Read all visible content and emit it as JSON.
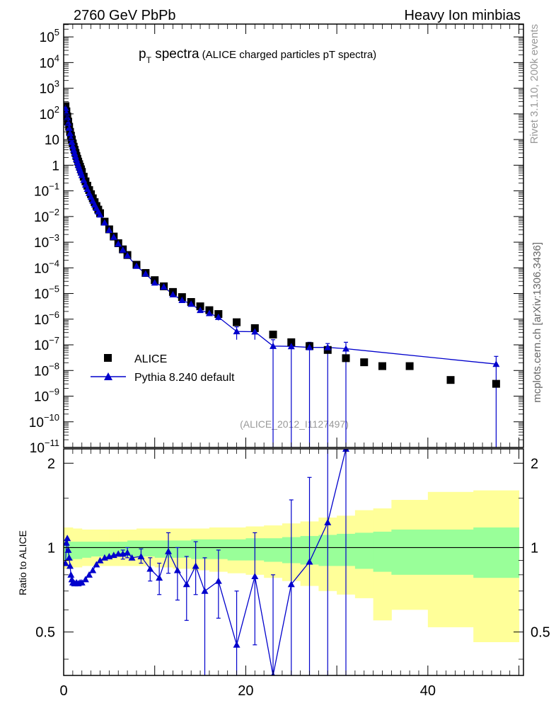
{
  "header": {
    "left_title": "2760 GeV PbPb",
    "right_title": "Heavy Ion minbias"
  },
  "main_title": {
    "symbol": "p",
    "subscript": "T",
    "word": " spectra",
    "detail": " (ALICE charged particles pT spectra)"
  },
  "side_labels": {
    "rivet": "Rivet 3.1.10,  200k events",
    "mcplots": "mcplots.cern.ch [arXiv:1306.3436]"
  },
  "analysis_tag": "(ALICE_2012_I1127497)",
  "colors": {
    "data": "#000000",
    "mc": "#0000cc",
    "band_outer": "#ffff99",
    "band_inner": "#99ff99"
  },
  "chart_data": [
    {
      "type": "scatter",
      "panel": "main",
      "xlim": [
        0,
        50.5
      ],
      "ylim_log10": [
        -11,
        5.5
      ],
      "y_scale": "log",
      "yticks": [
        {
          "v": 5,
          "label": "10",
          "exp": "5"
        },
        {
          "v": 4,
          "label": "10",
          "exp": "4"
        },
        {
          "v": 3,
          "label": "10",
          "exp": "3"
        },
        {
          "v": 2,
          "label": "10",
          "exp": "2"
        },
        {
          "v": 1,
          "label": "10",
          "exp": ""
        },
        {
          "v": 0,
          "label": "1",
          "exp": ""
        },
        {
          "v": -1,
          "label": "10",
          "exp": "−1"
        },
        {
          "v": -2,
          "label": "10",
          "exp": "−2"
        },
        {
          "v": -3,
          "label": "10",
          "exp": "−3"
        },
        {
          "v": -4,
          "label": "10",
          "exp": "−4"
        },
        {
          "v": -5,
          "label": "10",
          "exp": "−5"
        },
        {
          "v": -6,
          "label": "10",
          "exp": "−6"
        },
        {
          "v": -7,
          "label": "10",
          "exp": "−7"
        },
        {
          "v": -8,
          "label": "10",
          "exp": "−8"
        },
        {
          "v": -9,
          "label": "10",
          "exp": "−9"
        },
        {
          "v": -10,
          "label": "10",
          "exp": "−10"
        },
        {
          "v": -11,
          "label": "10",
          "exp": "−11"
        }
      ],
      "legend_position": "center-left",
      "series": [
        {
          "name": "ALICE",
          "marker": "square",
          "points": [
            [
              0.2,
              2.3
            ],
            [
              0.3,
              2.1
            ],
            [
              0.4,
              1.9
            ],
            [
              0.5,
              1.7
            ],
            [
              0.6,
              1.5
            ],
            [
              0.7,
              1.3
            ],
            [
              0.8,
              1.15
            ],
            [
              0.9,
              1.0
            ],
            [
              1.0,
              0.85
            ],
            [
              1.1,
              0.72
            ],
            [
              1.2,
              0.6
            ],
            [
              1.3,
              0.48
            ],
            [
              1.4,
              0.36
            ],
            [
              1.5,
              0.25
            ],
            [
              1.6,
              0.14
            ],
            [
              1.7,
              0.04
            ],
            [
              1.8,
              -0.06
            ],
            [
              1.9,
              -0.16
            ],
            [
              2.0,
              -0.26
            ],
            [
              2.2,
              -0.45
            ],
            [
              2.4,
              -0.63
            ],
            [
              2.6,
              -0.8
            ],
            [
              2.8,
              -0.97
            ],
            [
              3.0,
              -1.13
            ],
            [
              3.2,
              -1.29
            ],
            [
              3.4,
              -1.44
            ],
            [
              3.6,
              -1.59
            ],
            [
              3.8,
              -1.73
            ],
            [
              4.0,
              -1.87
            ],
            [
              4.5,
              -2.2
            ],
            [
              5.0,
              -2.5
            ],
            [
              5.5,
              -2.78
            ],
            [
              6.0,
              -3.04
            ],
            [
              6.5,
              -3.28
            ],
            [
              7.0,
              -3.5
            ],
            [
              8.0,
              -3.88
            ],
            [
              9.0,
              -4.2
            ],
            [
              10.0,
              -4.48
            ],
            [
              11.0,
              -4.72
            ],
            [
              12.0,
              -4.94
            ],
            [
              13.0,
              -5.14
            ],
            [
              14.0,
              -5.33
            ],
            [
              15.0,
              -5.5
            ],
            [
              16.0,
              -5.65
            ],
            [
              17.0,
              -5.8
            ],
            [
              19.0,
              -6.12
            ],
            [
              21.0,
              -6.35
            ],
            [
              23.0,
              -6.6
            ],
            [
              25.0,
              -6.9
            ],
            [
              27.0,
              -7.05
            ],
            [
              29.0,
              -7.2
            ],
            [
              31.0,
              -7.52
            ],
            [
              33.0,
              -7.68
            ],
            [
              35.0,
              -7.83
            ],
            [
              38.0,
              -7.83
            ],
            [
              42.5,
              -8.37
            ],
            [
              47.5,
              -8.52
            ]
          ]
        },
        {
          "name": "Pythia 8.240 default",
          "marker": "triangle",
          "points": [
            [
              0.2,
              2.22
            ],
            [
              0.3,
              2.04
            ],
            [
              0.4,
              1.86
            ],
            [
              0.5,
              1.65
            ],
            [
              0.6,
              1.45
            ],
            [
              0.7,
              1.24
            ],
            [
              0.8,
              1.05
            ],
            [
              0.9,
              0.9
            ],
            [
              1.0,
              0.74
            ],
            [
              1.1,
              0.6
            ],
            [
              1.2,
              0.47
            ],
            [
              1.3,
              0.35
            ],
            [
              1.4,
              0.23
            ],
            [
              1.5,
              0.12
            ],
            [
              1.6,
              0.01
            ],
            [
              1.7,
              -0.09
            ],
            [
              1.8,
              -0.19
            ],
            [
              1.9,
              -0.29
            ],
            [
              2.0,
              -0.39
            ],
            [
              2.2,
              -0.58
            ],
            [
              2.4,
              -0.76
            ],
            [
              2.6,
              -0.93
            ],
            [
              2.8,
              -1.09
            ],
            [
              3.0,
              -1.24
            ],
            [
              3.2,
              -1.39
            ],
            [
              3.4,
              -1.54
            ],
            [
              3.6,
              -1.67
            ],
            [
              3.8,
              -1.81
            ],
            [
              4.0,
              -1.93
            ],
            [
              4.5,
              -2.24
            ],
            [
              5.0,
              -2.53
            ],
            [
              5.5,
              -2.8
            ],
            [
              6.0,
              -3.06
            ],
            [
              6.5,
              -3.3
            ],
            [
              7.0,
              -3.52
            ],
            [
              8.0,
              -3.93
            ],
            [
              9.0,
              -4.23
            ],
            [
              10.0,
              -4.58
            ],
            [
              11.0,
              -4.74
            ],
            [
              12.0,
              -5.04
            ],
            [
              13.0,
              -5.26
            ],
            [
              14.0,
              -5.41
            ],
            [
              15.0,
              -5.65
            ],
            [
              16.0,
              -5.77
            ],
            [
              17.0,
              -5.92
            ],
            [
              19.0,
              -6.48
            ],
            [
              21.0,
              -6.49
            ],
            [
              23.0,
              -7.05
            ],
            [
              25.0,
              -7.06
            ],
            [
              27.0,
              -7.1
            ],
            [
              29.0,
              -7.1
            ],
            [
              31.0,
              -7.15
            ],
            [
              47.5,
              -7.75
            ]
          ],
          "error_bars_log10": [
            [
              15.0,
              -5.55,
              -5.75
            ],
            [
              16.0,
              -5.7,
              -5.85
            ],
            [
              17.0,
              -5.82,
              -6.05
            ],
            [
              19.0,
              -6.3,
              -6.8
            ],
            [
              21.0,
              -6.3,
              -6.8
            ],
            [
              23.0,
              -6.8,
              -11.0
            ],
            [
              25.0,
              -6.9,
              -11.0
            ],
            [
              27.0,
              -6.9,
              -11.0
            ],
            [
              29.0,
              -6.95,
              -11.0
            ],
            [
              31.0,
              -6.9,
              -11.0
            ],
            [
              47.5,
              -7.45,
              -11.0
            ]
          ]
        }
      ]
    },
    {
      "type": "line",
      "panel": "ratio",
      "ylabel": "Ratio to ALICE",
      "xlim": [
        0,
        50.5
      ],
      "ylim": [
        0.35,
        2.25
      ],
      "y_scale": "log",
      "xticks": [
        0,
        20,
        40
      ],
      "yticks": [
        0.5,
        1,
        2
      ],
      "reference_line": 1,
      "bands": {
        "x": [
          0,
          1,
          2,
          3,
          4,
          5,
          6,
          7,
          8,
          10,
          12,
          14,
          16,
          18,
          20,
          22,
          24,
          26,
          28,
          30,
          32,
          34,
          36,
          40,
          45,
          50
        ],
        "outer_low": [
          0.84,
          0.85,
          0.86,
          0.86,
          0.86,
          0.86,
          0.86,
          0.86,
          0.86,
          0.85,
          0.84,
          0.83,
          0.82,
          0.81,
          0.8,
          0.78,
          0.76,
          0.73,
          0.7,
          0.68,
          0.66,
          0.55,
          0.6,
          0.52,
          0.46,
          0.46
        ],
        "outer_high": [
          1.18,
          1.17,
          1.16,
          1.16,
          1.16,
          1.16,
          1.16,
          1.16,
          1.17,
          1.17,
          1.17,
          1.17,
          1.18,
          1.18,
          1.19,
          1.2,
          1.22,
          1.24,
          1.28,
          1.3,
          1.36,
          1.38,
          1.48,
          1.58,
          1.6,
          1.6
        ],
        "inner_low": [
          0.9,
          0.91,
          0.92,
          0.93,
          0.93,
          0.93,
          0.93,
          0.93,
          0.93,
          0.92,
          0.92,
          0.91,
          0.91,
          0.9,
          0.9,
          0.89,
          0.88,
          0.87,
          0.86,
          0.86,
          0.84,
          0.82,
          0.8,
          0.8,
          0.78,
          0.78
        ],
        "inner_high": [
          1.05,
          1.05,
          1.05,
          1.05,
          1.05,
          1.05,
          1.05,
          1.06,
          1.06,
          1.06,
          1.06,
          1.07,
          1.07,
          1.07,
          1.08,
          1.08,
          1.09,
          1.1,
          1.11,
          1.12,
          1.13,
          1.14,
          1.16,
          1.16,
          1.18,
          1.18
        ]
      },
      "series": [
        {
          "name": "Pythia 8.240 default",
          "points": [
            [
              0.2,
              0.88
            ],
            [
              0.3,
              1.04
            ],
            [
              0.4,
              1.08
            ],
            [
              0.5,
              0.98
            ],
            [
              0.6,
              0.92
            ],
            [
              0.7,
              0.86
            ],
            [
              0.8,
              0.8
            ],
            [
              0.9,
              0.77
            ],
            [
              1.0,
              0.75
            ],
            [
              1.2,
              0.745
            ],
            [
              1.4,
              0.75
            ],
            [
              1.6,
              0.745
            ],
            [
              1.8,
              0.75
            ],
            [
              2.0,
              0.75
            ],
            [
              2.4,
              0.77
            ],
            [
              2.8,
              0.8
            ],
            [
              3.2,
              0.83
            ],
            [
              3.6,
              0.87
            ],
            [
              4.0,
              0.9
            ],
            [
              4.5,
              0.92
            ],
            [
              5.0,
              0.93
            ],
            [
              5.5,
              0.94
            ],
            [
              6.0,
              0.95
            ],
            [
              6.5,
              0.95
            ],
            [
              7.0,
              0.96
            ],
            [
              7.5,
              0.92
            ],
            [
              8.5,
              0.93
            ],
            [
              9.5,
              0.84
            ],
            [
              10.5,
              0.78
            ],
            [
              11.5,
              0.97
            ],
            [
              12.5,
              0.83
            ],
            [
              13.5,
              0.74
            ],
            [
              14.5,
              0.86
            ],
            [
              15.5,
              0.7
            ],
            [
              17.0,
              0.76
            ],
            [
              19.0,
              0.45
            ],
            [
              21.0,
              0.79
            ],
            [
              23.0,
              0.35
            ],
            [
              25.0,
              0.74
            ],
            [
              27.0,
              0.89
            ],
            [
              29.0,
              1.23
            ],
            [
              31.0,
              2.25
            ]
          ],
          "error_bars": [
            [
              6.5,
              0.98,
              0.91
            ],
            [
              7.0,
              1.0,
              0.92
            ],
            [
              8.5,
              0.99,
              0.88
            ],
            [
              9.5,
              0.92,
              0.76
            ],
            [
              10.5,
              0.88,
              0.68
            ],
            [
              11.5,
              1.13,
              0.81
            ],
            [
              12.5,
              1.0,
              0.65
            ],
            [
              13.5,
              0.93,
              0.55
            ],
            [
              14.5,
              1.05,
              0.68
            ],
            [
              15.5,
              0.92,
              0.35
            ],
            [
              17.0,
              0.98,
              0.56
            ],
            [
              19.0,
              0.7,
              0.35
            ],
            [
              21.0,
              1.13,
              0.45
            ],
            [
              23.0,
              0.8,
              0.35
            ],
            [
              25.0,
              1.48,
              0.35
            ],
            [
              27.0,
              1.78,
              0.35
            ],
            [
              29.0,
              2.3,
              0.35
            ],
            [
              31.0,
              2.3,
              0.35
            ]
          ]
        }
      ]
    }
  ]
}
